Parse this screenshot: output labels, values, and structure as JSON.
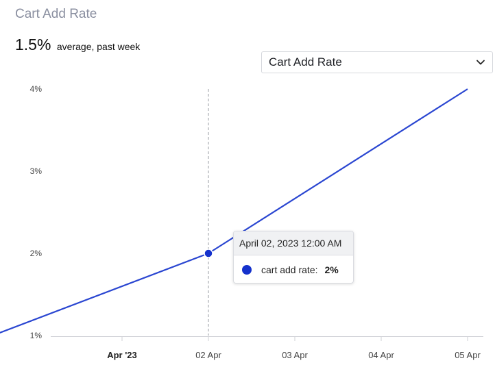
{
  "header": {
    "title": "Cart Add Rate",
    "kpi_value": "1.5%",
    "kpi_caption": "average, past week"
  },
  "metric_select": {
    "selected": "Cart Add Rate",
    "icon": "chevron-down-icon"
  },
  "tooltip": {
    "date": "April 02, 2023 12:00 AM",
    "series_label": "cart add rate:",
    "value": "2%",
    "color": "#1431cc"
  },
  "chart_data": {
    "type": "line",
    "series": [
      {
        "name": "cart add rate",
        "color": "#2a46d1",
        "points": [
          {
            "x": "2023-03-30 12:00",
            "y": 1.0
          },
          {
            "x": "2023-04-02 00:00",
            "y": 2.0
          },
          {
            "x": "2023-04-05 00:00",
            "y": 4.0
          }
        ]
      }
    ],
    "x_ticks": [
      {
        "label": "Apr '23",
        "x": "2023-04-01",
        "major": true
      },
      {
        "label": "02 Apr",
        "x": "2023-04-02",
        "major": false
      },
      {
        "label": "03 Apr",
        "x": "2023-04-03",
        "major": false
      },
      {
        "label": "04 Apr",
        "x": "2023-04-04",
        "major": false
      },
      {
        "label": "05 Apr",
        "x": "2023-04-05",
        "major": false
      }
    ],
    "y_ticks": [
      "1%",
      "2%",
      "3%",
      "4%"
    ],
    "ylim": [
      1,
      4
    ],
    "highlight": {
      "x": "2023-04-02 00:00",
      "y": 2.0
    },
    "grid": false
  }
}
